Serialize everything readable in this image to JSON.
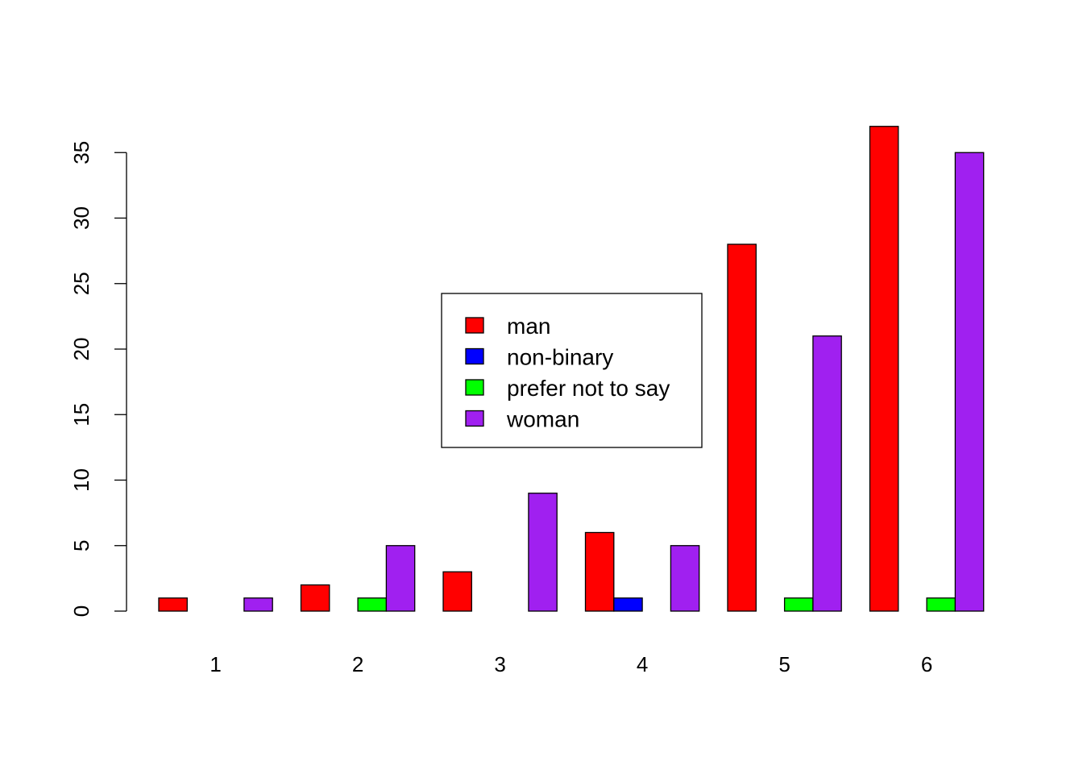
{
  "chart_data": {
    "type": "bar",
    "title": "",
    "xlabel": "",
    "ylabel": "",
    "categories": [
      "1",
      "2",
      "3",
      "4",
      "5",
      "6"
    ],
    "series": [
      {
        "name": "man",
        "color": "#FF0000",
        "values": [
          1,
          2,
          3,
          6,
          28,
          37
        ]
      },
      {
        "name": "non-binary",
        "color": "#0000FF",
        "values": [
          0,
          0,
          0,
          1,
          0,
          0
        ]
      },
      {
        "name": "prefer not to say",
        "color": "#00FF00",
        "values": [
          0,
          1,
          0,
          0,
          1,
          1
        ]
      },
      {
        "name": "woman",
        "color": "#A020F0",
        "values": [
          1,
          5,
          9,
          5,
          21,
          35
        ]
      }
    ],
    "ylim": [
      0,
      37
    ],
    "yticks": [
      0,
      5,
      10,
      15,
      20,
      25,
      30,
      35
    ],
    "legend_position": "center",
    "grid": false,
    "bar_outline_color": "#000000",
    "bar_layout": "grouped"
  }
}
